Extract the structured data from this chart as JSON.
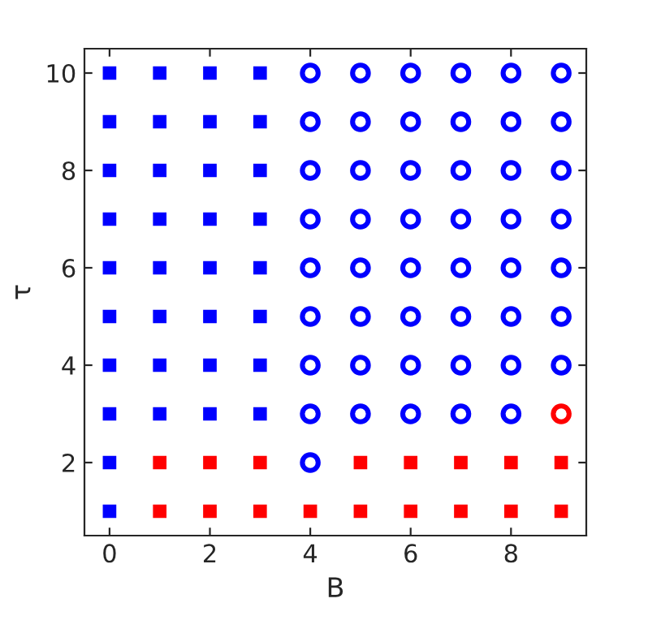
{
  "chart_data": {
    "type": "scatter",
    "xlabel": "B",
    "ylabel": "τ",
    "xlim": [
      -0.5,
      9.5
    ],
    "ylim": [
      0.5,
      10.5
    ],
    "xticks": [
      0,
      2,
      4,
      6,
      8
    ],
    "yticks": [
      2,
      4,
      6,
      8,
      10
    ],
    "grid": false,
    "series": [
      {
        "color": "#0000ff",
        "marker": "square",
        "x": [
          0,
          0,
          0,
          0,
          0,
          0,
          0,
          0,
          0,
          0,
          1,
          1,
          1,
          1,
          1,
          1,
          1,
          1,
          2,
          2,
          2,
          2,
          2,
          2,
          2,
          2,
          3,
          3,
          3,
          3,
          3,
          3,
          3,
          3
        ],
        "values": [
          1,
          2,
          3,
          4,
          5,
          6,
          7,
          8,
          9,
          10,
          3,
          4,
          5,
          6,
          7,
          8,
          9,
          10,
          3,
          4,
          5,
          6,
          7,
          8,
          9,
          10,
          3,
          4,
          5,
          6,
          7,
          8,
          9,
          10
        ]
      },
      {
        "color": "#ff0000",
        "marker": "square",
        "x": [
          1,
          2,
          3,
          4,
          5,
          6,
          7,
          8,
          9,
          1,
          2,
          3,
          5,
          6,
          7,
          8,
          9
        ],
        "values": [
          1,
          1,
          1,
          1,
          1,
          1,
          1,
          1,
          1,
          2,
          2,
          2,
          2,
          2,
          2,
          2,
          2
        ]
      },
      {
        "color": "#0000ff",
        "marker": "circle",
        "x": [
          4,
          4,
          4,
          4,
          4,
          4,
          4,
          4,
          4,
          5,
          5,
          5,
          5,
          5,
          5,
          5,
          5,
          6,
          6,
          6,
          6,
          6,
          6,
          6,
          6,
          7,
          7,
          7,
          7,
          7,
          7,
          7,
          7,
          8,
          8,
          8,
          8,
          8,
          8,
          8,
          8,
          9,
          9,
          9,
          9,
          9,
          9,
          9
        ],
        "values": [
          2,
          3,
          4,
          5,
          6,
          7,
          8,
          9,
          10,
          3,
          4,
          5,
          6,
          7,
          8,
          9,
          10,
          3,
          4,
          5,
          6,
          7,
          8,
          9,
          10,
          3,
          4,
          5,
          6,
          7,
          8,
          9,
          10,
          3,
          4,
          5,
          6,
          7,
          8,
          9,
          10,
          4,
          5,
          6,
          7,
          8,
          9,
          10
        ]
      },
      {
        "color": "#ff0000",
        "marker": "circle",
        "x": [
          9
        ],
        "values": [
          3
        ]
      }
    ]
  }
}
